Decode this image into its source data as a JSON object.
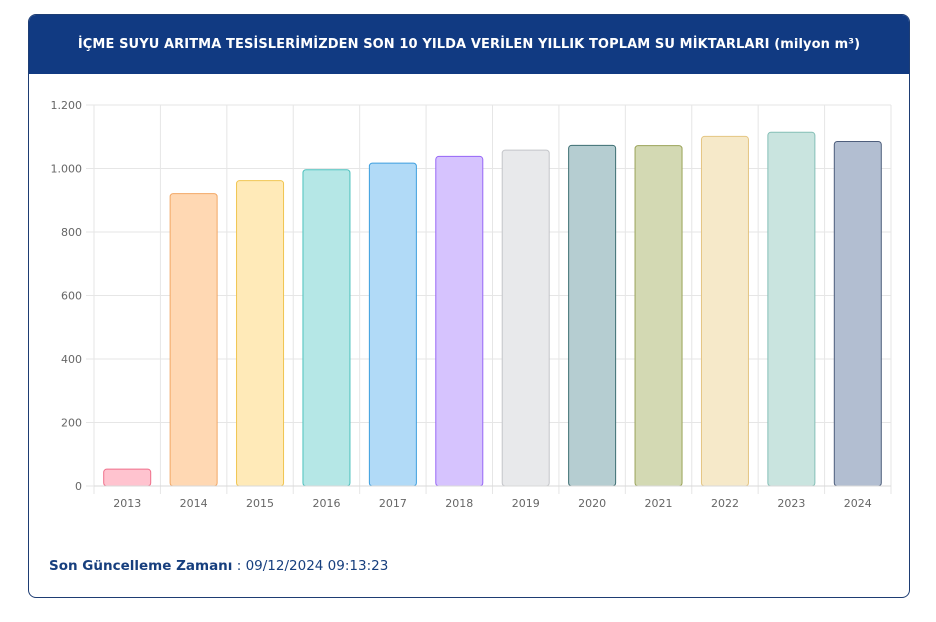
{
  "header": {
    "title": "İÇME SUYU ARITMA TESİSLERİMİZDEN SON 10 YILDA VERİLEN YILLIK TOPLAM SU MİKTARLARI (milyon m³)"
  },
  "footer": {
    "label": "Son Güncelleme Zamanı",
    "separator": " : ",
    "timestamp": "09/12/2024 09:13:23"
  },
  "chart_data": {
    "type": "bar",
    "title": "İÇME SUYU ARITMA TESİSLERİMİZDEN SON 10 YILDA VERİLEN YILLIK TOPLAM SU MİKTARLARI (milyon m³)",
    "xlabel": "",
    "ylabel": "",
    "categories": [
      "2013",
      "2014",
      "2015",
      "2016",
      "2017",
      "2018",
      "2019",
      "2020",
      "2021",
      "2022",
      "2023",
      "2024"
    ],
    "values": [
      53,
      921,
      962,
      996,
      1017,
      1038,
      1058,
      1073,
      1072,
      1101,
      1114,
      1085
    ],
    "ylim": [
      0,
      1200
    ],
    "yticks": [
      0,
      200,
      400,
      600,
      800,
      1000,
      1200
    ],
    "ytick_labels": [
      "0",
      "200",
      "400",
      "600",
      "800",
      "1.000",
      "1.200"
    ],
    "grid": true,
    "legend": "none",
    "colors": {
      "fills": [
        "#ffc3cf",
        "#ffd8b3",
        "#ffeab8",
        "#b5e7e6",
        "#b1daf7",
        "#d6c3fe",
        "#e8e9eb",
        "#b5cdd1",
        "#d3d9b3",
        "#f6e9c9",
        "#c9e4df",
        "#b2bed1"
      ],
      "strokes": [
        "#ef6f8a",
        "#f2a765",
        "#f0c550",
        "#4cc1bd",
        "#3c9ede",
        "#9766f6",
        "#c3c5c9",
        "#3d6e72",
        "#9aa358",
        "#e4c582",
        "#84bfb6",
        "#4e5e7c"
      ],
      "grid": "#e6e6e6",
      "tick_text": "#666666"
    }
  }
}
